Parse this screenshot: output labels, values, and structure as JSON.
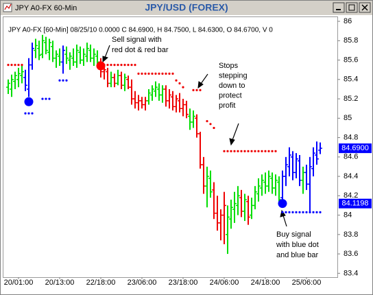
{
  "window_title": "JPY A0-FX 60-Min",
  "chart_data": {
    "type": "ohlc",
    "title": "JPY/USD (FOREX)",
    "info": "JPY A0-FX [60-Min] 08/25/10  0.0000 C 84.6900, H 84.7500, L 84.6300, O 84.6700, V 0",
    "categories": [
      null,
      null,
      null,
      "20/01:00",
      null,
      null,
      null,
      null,
      null,
      null,
      null,
      null,
      null,
      null,
      null,
      "20/13:00",
      null,
      null,
      null,
      null,
      null,
      null,
      null,
      null,
      null,
      null,
      null,
      "22/18:00",
      null,
      null,
      null,
      null,
      null,
      null,
      null,
      null,
      null,
      null,
      null,
      "23/06:00",
      null,
      null,
      null,
      null,
      null,
      null,
      null,
      null,
      null,
      null,
      null,
      "23/18:00",
      null,
      null,
      null,
      null,
      null,
      null,
      null,
      null,
      null,
      null,
      null,
      "24/06:00",
      null,
      null,
      null,
      null,
      null,
      null,
      null,
      null,
      null,
      null,
      null,
      "24/18:00",
      null,
      null,
      null,
      null,
      null,
      null,
      null,
      null,
      null,
      null,
      null,
      "25/06:00",
      null,
      null,
      null,
      null
    ],
    "open": [
      85.32,
      85.3,
      85.38,
      85.4,
      85.44,
      85.42,
      85.3,
      85.55,
      85.7,
      85.72,
      85.66,
      85.78,
      85.68,
      85.74,
      85.62,
      85.64,
      85.58,
      85.66,
      85.6,
      85.62,
      85.58,
      85.68,
      85.6,
      85.64,
      85.7,
      85.62,
      85.64,
      85.58,
      85.48,
      85.48,
      85.36,
      85.42,
      85.36,
      85.44,
      85.34,
      85.4,
      85.32,
      85.2,
      85.16,
      85.18,
      85.14,
      85.18,
      85.24,
      85.28,
      85.3,
      85.24,
      85.3,
      85.18,
      85.22,
      85.12,
      85.18,
      85.1,
      85.14,
      85.02,
      84.96,
      85.0,
      84.84,
      84.52,
      84.3,
      84.38,
      84.26,
      84.02,
      83.92,
      84.0,
      83.8,
      83.96,
      84.06,
      84.1,
      84.18,
      84.04,
      84.14,
      84.0,
      84.1,
      84.22,
      84.28,
      84.34,
      84.3,
      84.38,
      84.28,
      84.34,
      84.18,
      84.4,
      84.5,
      84.6,
      84.44,
      84.56,
      84.36,
      84.44,
      84.32,
      84.48,
      84.62,
      84.67
    ],
    "high": [
      85.4,
      85.45,
      85.48,
      85.52,
      85.55,
      85.5,
      85.62,
      85.78,
      85.82,
      85.8,
      85.86,
      85.84,
      85.82,
      85.8,
      85.7,
      85.72,
      85.75,
      85.74,
      85.68,
      85.72,
      85.76,
      85.74,
      85.72,
      85.78,
      85.76,
      85.72,
      85.7,
      85.62,
      85.56,
      85.52,
      85.48,
      85.46,
      85.5,
      85.48,
      85.46,
      85.44,
      85.4,
      85.28,
      85.24,
      85.22,
      85.22,
      85.3,
      85.34,
      85.38,
      85.36,
      85.34,
      85.34,
      85.3,
      85.28,
      85.24,
      85.26,
      85.2,
      85.18,
      85.1,
      85.08,
      85.04,
      84.86,
      84.6,
      84.5,
      84.46,
      84.34,
      84.2,
      84.06,
      84.24,
      84.1,
      84.16,
      84.24,
      84.3,
      84.26,
      84.22,
      84.2,
      84.18,
      84.3,
      84.38,
      84.42,
      84.44,
      84.46,
      84.44,
      84.42,
      84.4,
      84.46,
      84.6,
      84.7,
      84.66,
      84.64,
      84.62,
      84.5,
      84.52,
      84.6,
      84.7,
      84.76,
      84.75
    ],
    "low": [
      85.25,
      85.22,
      85.3,
      85.32,
      85.36,
      85.28,
      85.22,
      85.5,
      85.62,
      85.6,
      85.62,
      85.66,
      85.6,
      85.58,
      85.52,
      85.54,
      85.46,
      85.56,
      85.5,
      85.54,
      85.52,
      85.56,
      85.54,
      85.58,
      85.58,
      85.54,
      85.52,
      85.42,
      85.4,
      85.32,
      85.32,
      85.32,
      85.34,
      85.3,
      85.28,
      85.3,
      85.14,
      85.1,
      85.08,
      85.1,
      85.08,
      85.14,
      85.18,
      85.22,
      85.18,
      85.16,
      85.12,
      85.1,
      85.08,
      85.06,
      85.06,
      85.02,
      85.0,
      84.88,
      84.9,
      84.8,
      84.48,
      84.22,
      84.08,
      84.18,
      83.96,
      83.84,
      83.74,
      83.7,
      83.6,
      83.86,
      83.92,
      84.0,
      83.98,
      83.94,
      83.9,
      83.96,
      84.06,
      84.14,
      84.2,
      84.22,
      84.24,
      84.22,
      84.2,
      84.1,
      84.12,
      84.3,
      84.4,
      84.36,
      84.38,
      84.3,
      84.22,
      84.26,
      84.04,
      84.4,
      84.52,
      84.63
    ],
    "close": [
      85.36,
      85.4,
      85.44,
      85.46,
      85.48,
      85.34,
      85.55,
      85.72,
      85.75,
      85.65,
      85.8,
      85.7,
      85.78,
      85.62,
      85.66,
      85.58,
      85.7,
      85.62,
      85.64,
      85.58,
      85.7,
      85.6,
      85.66,
      85.72,
      85.62,
      85.66,
      85.58,
      85.48,
      85.5,
      85.36,
      85.42,
      85.36,
      85.44,
      85.34,
      85.42,
      85.32,
      85.2,
      85.16,
      85.18,
      85.14,
      85.18,
      85.26,
      85.3,
      85.32,
      85.24,
      85.3,
      85.18,
      85.24,
      85.12,
      85.2,
      85.1,
      85.14,
      85.04,
      84.96,
      85.02,
      84.84,
      84.52,
      84.3,
      84.4,
      84.24,
      84.02,
      83.92,
      84.0,
      84.1,
      83.98,
      84.08,
      84.12,
      84.2,
      84.04,
      84.16,
      83.98,
      84.1,
      84.24,
      84.3,
      84.36,
      84.3,
      84.4,
      84.28,
      84.36,
      84.16,
      84.4,
      84.52,
      84.62,
      84.44,
      84.58,
      84.36,
      84.44,
      84.32,
      84.5,
      84.64,
      84.58,
      84.69
    ],
    "bar_colors": [
      "#00dd00",
      "#00dd00",
      "#00dd00",
      "#00dd00",
      "#00dd00",
      "#0000ff",
      "#0000ff",
      "#0000ff",
      "#00dd00",
      "#00dd00",
      "#00dd00",
      "#00dd00",
      "#00dd00",
      "#00dd00",
      "#00dd00",
      "#00dd00",
      "#0000ff",
      "#00dd00",
      "#00dd00",
      "#00dd00",
      "#00dd00",
      "#00dd00",
      "#00dd00",
      "#00dd00",
      "#00dd00",
      "#00dd00",
      "#00dd00",
      "#ee0000",
      "#ee0000",
      "#ee0000",
      "#00dd00",
      "#ee0000",
      "#00dd00",
      "#ee0000",
      "#00dd00",
      "#ee0000",
      "#ee0000",
      "#ee0000",
      "#ee0000",
      "#ee0000",
      "#ee0000",
      "#00dd00",
      "#00dd00",
      "#00dd00",
      "#00dd00",
      "#00dd00",
      "#ee0000",
      "#ee0000",
      "#ee0000",
      "#ee0000",
      "#ee0000",
      "#ee0000",
      "#ee0000",
      "#00dd00",
      "#00dd00",
      "#ee0000",
      "#ee0000",
      "#ee0000",
      "#00dd00",
      "#00dd00",
      "#ee0000",
      "#ee0000",
      "#ee0000",
      "#ee0000",
      "#00dd00",
      "#00dd00",
      "#00dd00",
      "#00dd00",
      "#ee0000",
      "#00dd00",
      "#ee0000",
      "#00dd00",
      "#00dd00",
      "#00dd00",
      "#00dd00",
      "#00dd00",
      "#00dd00",
      "#00dd00",
      "#00dd00",
      "#00dd00",
      "#0000ff",
      "#0000ff",
      "#0000ff",
      "#0000ff",
      "#0000ff",
      "#0000ff",
      "#00dd00",
      "#0000ff",
      "#0000ff",
      "#0000ff",
      "#0000ff",
      "#0000ff"
    ],
    "upper_stops": {
      "color": "#ee0000",
      "values": [
        85.55,
        85.55,
        85.55,
        85.55,
        85.55,
        null,
        null,
        null,
        null,
        null,
        null,
        null,
        null,
        null,
        null,
        null,
        null,
        null,
        null,
        null,
        null,
        null,
        null,
        null,
        null,
        null,
        null,
        null,
        85.55,
        85.55,
        85.55,
        85.55,
        85.55,
        85.55,
        85.55,
        85.55,
        85.55,
        85.55,
        85.46,
        85.46,
        85.46,
        85.46,
        85.46,
        85.46,
        85.46,
        85.46,
        85.46,
        85.46,
        85.46,
        85.39,
        85.36,
        85.32,
        null,
        null,
        85.29,
        85.29,
        85.29,
        null,
        84.97,
        84.94,
        84.9,
        null,
        null,
        84.66,
        84.66,
        84.66,
        84.66,
        84.66,
        84.66,
        84.66,
        84.66,
        84.66,
        84.66,
        84.66,
        84.66,
        84.66,
        84.66,
        84.66,
        84.66,
        null,
        null,
        null,
        null,
        null,
        null,
        null,
        null,
        null,
        null,
        null,
        null,
        null
      ]
    },
    "lower_stops": {
      "color": "#0000ff",
      "values": [
        null,
        null,
        null,
        null,
        null,
        85.05,
        85.05,
        85.05,
        null,
        null,
        85.2,
        85.2,
        85.2,
        null,
        null,
        85.39,
        85.39,
        85.39,
        null,
        null,
        null,
        null,
        null,
        null,
        null,
        null,
        null,
        null,
        null,
        null,
        null,
        null,
        null,
        null,
        null,
        null,
        null,
        null,
        null,
        null,
        null,
        null,
        null,
        null,
        null,
        null,
        null,
        null,
        null,
        null,
        null,
        null,
        null,
        null,
        null,
        null,
        null,
        null,
        null,
        null,
        null,
        null,
        null,
        null,
        null,
        null,
        null,
        null,
        null,
        null,
        null,
        null,
        null,
        null,
        null,
        null,
        null,
        null,
        null,
        null,
        84.03,
        84.03,
        84.03,
        84.03,
        84.03,
        84.03,
        84.03,
        84.03,
        84.03,
        84.03,
        84.03,
        84.03
      ]
    },
    "signals": [
      {
        "index": 6,
        "value": 85.17,
        "color": "#0000ff"
      },
      {
        "index": 27,
        "value": 85.54,
        "color": "#ff0000"
      },
      {
        "index": 80,
        "value": 84.12,
        "color": "#0000ff"
      }
    ],
    "last_price": {
      "value": 84.69,
      "label": "84.6900"
    },
    "signal_price": 84.1198,
    "annotations": [
      {
        "lines": [
          "Sell signal with",
          "red dot & red bar"
        ]
      },
      {
        "lines": [
          "Stops",
          "stepping",
          "down to",
          "protect",
          "profit"
        ]
      },
      {
        "lines": [
          "Buy signal",
          "with blue dot",
          "and blue bar"
        ]
      }
    ],
    "ylim": [
      83.36,
      86.05
    ],
    "yticks": [
      86,
      85.8,
      85.6,
      85.4,
      85.2,
      85,
      84.8,
      84.6,
      84.4,
      84.2,
      84,
      83.8,
      83.6,
      83.4
    ],
    "grid": false
  }
}
